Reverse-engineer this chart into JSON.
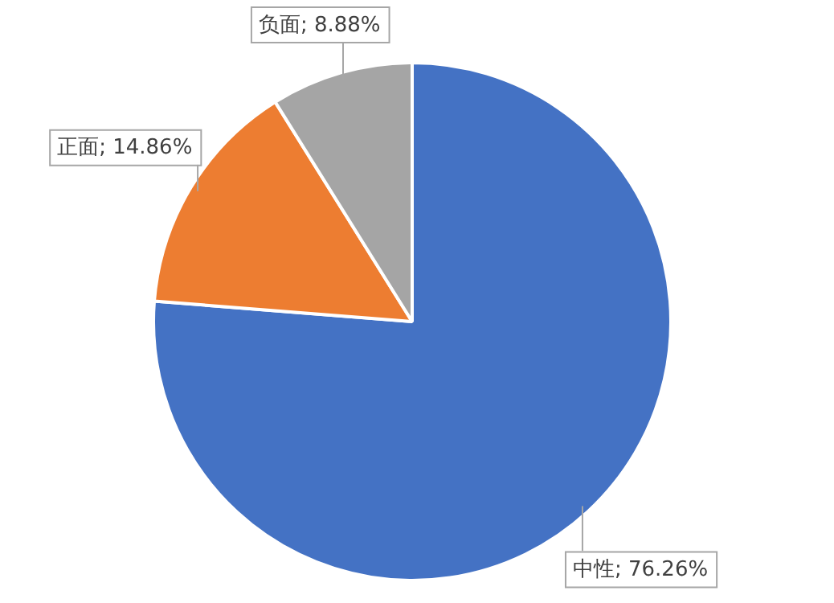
{
  "chart_data": {
    "type": "pie",
    "categories": [
      "中性",
      "正面",
      "负面"
    ],
    "values": [
      76.26,
      14.86,
      8.88
    ],
    "value_labels": [
      "; 76.26%",
      "; 14.86%",
      "; 8.88%"
    ],
    "colors": [
      "#4472c4",
      "#ed7d31",
      "#a5a5a5"
    ],
    "legend": false
  }
}
